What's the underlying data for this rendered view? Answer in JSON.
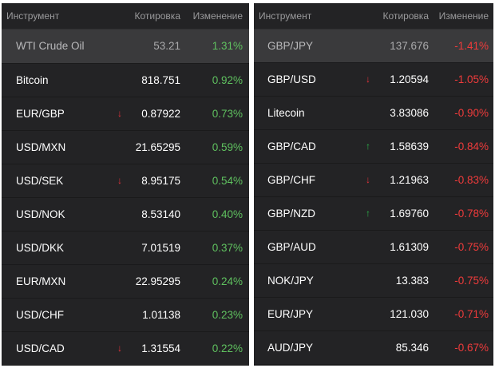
{
  "colors": {
    "background": "#232325",
    "positive": "#5fc15f",
    "negative": "#ef3b3b",
    "arrow_up": "#2bb54a",
    "arrow_down": "#e8323b"
  },
  "left_panel": {
    "headers": {
      "instrument": "Инструмент",
      "quote": "Котировка",
      "change": "Изменение"
    },
    "rows": [
      {
        "name": "WTI Crude Oil",
        "arrow": "",
        "quote": "53.21",
        "change": "1.31%",
        "dir": "pos",
        "highlighted": true
      },
      {
        "name": "Bitcoin",
        "arrow": "",
        "quote": "818.751",
        "change": "0.92%",
        "dir": "pos"
      },
      {
        "name": "EUR/GBP",
        "arrow": "down-arrow-icon",
        "quote": "0.87922",
        "change": "0.73%",
        "dir": "pos"
      },
      {
        "name": "USD/MXN",
        "arrow": "",
        "quote": "21.65295",
        "change": "0.59%",
        "dir": "pos"
      },
      {
        "name": "USD/SEK",
        "arrow": "down-arrow-icon",
        "quote": "8.95175",
        "change": "0.54%",
        "dir": "pos"
      },
      {
        "name": "USD/NOK",
        "arrow": "",
        "quote": "8.53140",
        "change": "0.40%",
        "dir": "pos"
      },
      {
        "name": "USD/DKK",
        "arrow": "",
        "quote": "7.01519",
        "change": "0.37%",
        "dir": "pos"
      },
      {
        "name": "EUR/MXN",
        "arrow": "",
        "quote": "22.95295",
        "change": "0.24%",
        "dir": "pos"
      },
      {
        "name": "USD/CHF",
        "arrow": "",
        "quote": "1.01138",
        "change": "0.23%",
        "dir": "pos"
      },
      {
        "name": "USD/CAD",
        "arrow": "down-arrow-icon",
        "quote": "1.31554",
        "change": "0.22%",
        "dir": "pos"
      }
    ]
  },
  "right_panel": {
    "headers": {
      "instrument": "Инструмент",
      "quote": "Котировка",
      "change": "Изменение"
    },
    "rows": [
      {
        "name": "GBP/JPY",
        "arrow": "",
        "quote": "137.676",
        "change": "-1.41%",
        "dir": "neg",
        "highlighted": true
      },
      {
        "name": "GBP/USD",
        "arrow": "down-arrow-icon",
        "quote": "1.20594",
        "change": "-1.05%",
        "dir": "neg"
      },
      {
        "name": "Litecoin",
        "arrow": "",
        "quote": "3.83086",
        "change": "-0.90%",
        "dir": "neg"
      },
      {
        "name": "GBP/CAD",
        "arrow": "up-arrow-icon",
        "quote": "1.58639",
        "change": "-0.84%",
        "dir": "neg"
      },
      {
        "name": "GBP/CHF",
        "arrow": "down-arrow-icon",
        "quote": "1.21963",
        "change": "-0.83%",
        "dir": "neg"
      },
      {
        "name": "GBP/NZD",
        "arrow": "up-arrow-icon",
        "quote": "1.69760",
        "change": "-0.78%",
        "dir": "neg"
      },
      {
        "name": "GBP/AUD",
        "arrow": "",
        "quote": "1.61309",
        "change": "-0.75%",
        "dir": "neg"
      },
      {
        "name": "NOK/JPY",
        "arrow": "",
        "quote": "13.383",
        "change": "-0.75%",
        "dir": "neg"
      },
      {
        "name": "EUR/JPY",
        "arrow": "",
        "quote": "121.030",
        "change": "-0.71%",
        "dir": "neg"
      },
      {
        "name": "AUD/JPY",
        "arrow": "",
        "quote": "85.346",
        "change": "-0.67%",
        "dir": "neg"
      }
    ]
  }
}
